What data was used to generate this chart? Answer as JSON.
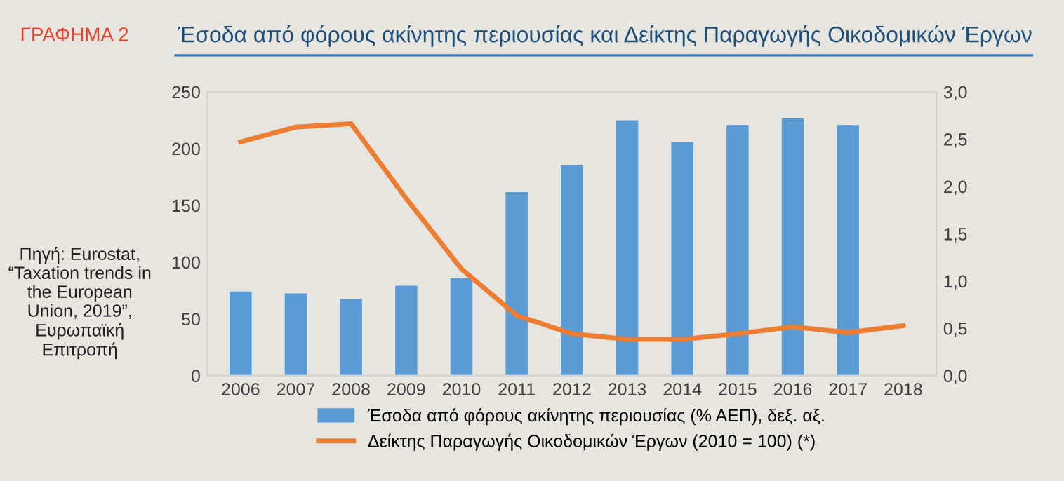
{
  "chart_data": {
    "type": "bar",
    "title": "Έσοδα από φόρους ακίνητης περιουσίας και Δείκτης Παραγωγής Οικοδομικών Έργων",
    "annotations": [
      "ΓΡΑΦΗΜΑ 2",
      "Πηγή: Eurostat, “Taxation trends in the European Union, 2019”, Ευρωπαϊκή Επιτροπή"
    ],
    "categories": [
      "2006",
      "2007",
      "2008",
      "2009",
      "2010",
      "2011",
      "2012",
      "2013",
      "2014",
      "2015",
      "2016",
      "2017",
      "2018"
    ],
    "series": [
      {
        "name": "Έσοδα από φόρους ακίνητης περιουσίας (% ΑΕΠ), δεξ. αξ.",
        "axis": "y2",
        "color": "#5b9bd5",
        "values": [
          0.89,
          0.87,
          0.81,
          0.95,
          1.03,
          1.94,
          2.23,
          2.7,
          2.47,
          2.65,
          2.72,
          2.65,
          null
        ]
      },
      {
        "name": "Δείκτης Παραγωγής Οικοδομικών Έργων (2010 = 100) (*)",
        "type": "line",
        "axis": "y",
        "color": "#ed7d31",
        "values": [
          206,
          219,
          222,
          156,
          94,
          53,
          37,
          32,
          32,
          37,
          43,
          38,
          44
        ]
      }
    ],
    "ylim": [
      0,
      250
    ],
    "yticks": [
      0,
      50,
      100,
      150,
      200,
      250
    ],
    "y2lim": [
      0,
      3.0
    ],
    "y2ticks": [
      {
        "value": 0,
        "label": "0,0"
      },
      {
        "value": 0.5,
        "label": "0,5"
      },
      {
        "value": 1.0,
        "label": "1,0"
      },
      {
        "value": 1.5,
        "label": "1,5"
      },
      {
        "value": 2.0,
        "label": "2,0"
      },
      {
        "value": 2.5,
        "label": "2,5"
      },
      {
        "value": 3.0,
        "label": "3,0"
      }
    ],
    "legend": "bottom",
    "grid": false,
    "marker": "none",
    "line_style": "solid"
  }
}
